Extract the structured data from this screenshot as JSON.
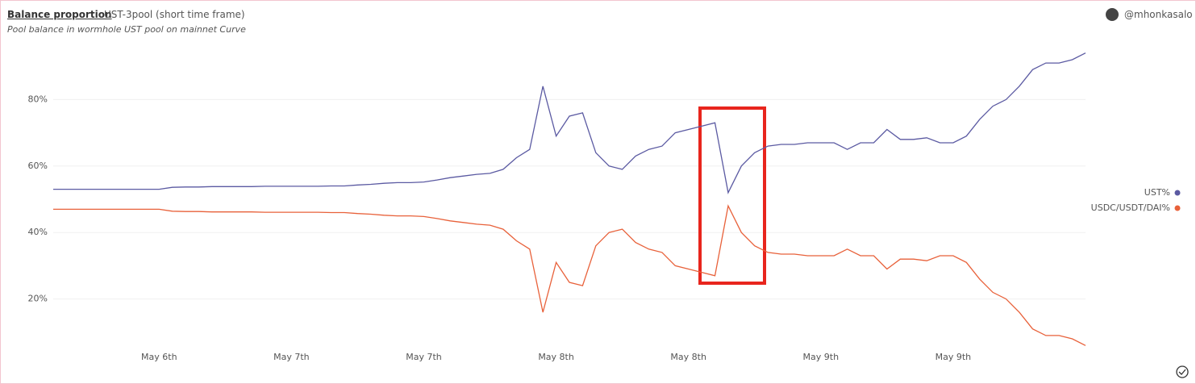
{
  "header": {
    "title": "Balance proportion",
    "query": "UST-3pool (short time frame)",
    "subtitle": "Pool balance in wormhole UST pool on mainnet Curve",
    "author": "@mhonkasalo"
  },
  "chart_data": {
    "type": "line",
    "categories": [
      null,
      null,
      null,
      null,
      null,
      null,
      null,
      null,
      "May 6th",
      null,
      null,
      null,
      null,
      null,
      null,
      null,
      null,
      null,
      "May 7th",
      null,
      null,
      null,
      null,
      null,
      null,
      null,
      null,
      null,
      "May 7th",
      null,
      null,
      null,
      null,
      null,
      null,
      null,
      null,
      null,
      "May 8th",
      null,
      null,
      null,
      null,
      null,
      null,
      null,
      null,
      null,
      "May 8th",
      null,
      null,
      null,
      null,
      null,
      null,
      null,
      null,
      null,
      "May 9th",
      null,
      null,
      null,
      null,
      null,
      null,
      null,
      null,
      null,
      "May 9th",
      null,
      null,
      null,
      null,
      null,
      null,
      null,
      null,
      null,
      null
    ],
    "series": [
      {
        "name": "UST%",
        "color": "#5b5aa2",
        "values": [
          53,
          53,
          53,
          53,
          53,
          53,
          53,
          53,
          53,
          53.6,
          53.7,
          53.7,
          53.8,
          53.8,
          53.8,
          53.8,
          53.9,
          53.9,
          53.9,
          53.9,
          53.9,
          54,
          54,
          54.3,
          54.5,
          54.8,
          55,
          55,
          55.2,
          55.8,
          56.5,
          57,
          57.5,
          57.8,
          59,
          62.5,
          65,
          84,
          69,
          75,
          76,
          64,
          60,
          59,
          63,
          65,
          66,
          70,
          71,
          72,
          73,
          52,
          60,
          64,
          66,
          66.5,
          66.5,
          67,
          67,
          67,
          65,
          67,
          67,
          71,
          68,
          68,
          68.5,
          67,
          67,
          69,
          74,
          78,
          80,
          84,
          89,
          91,
          91,
          92,
          94
        ]
      },
      {
        "name": "USDC/USDT/DAI%",
        "color": "#e8613a",
        "values": [
          47,
          47,
          47,
          47,
          47,
          47,
          47,
          47,
          47,
          46.4,
          46.3,
          46.3,
          46.2,
          46.2,
          46.2,
          46.2,
          46.1,
          46.1,
          46.1,
          46.1,
          46.1,
          46,
          46,
          45.7,
          45.5,
          45.2,
          45,
          45,
          44.8,
          44.2,
          43.5,
          43,
          42.5,
          42.2,
          41,
          37.5,
          35,
          16,
          31,
          25,
          24,
          36,
          40,
          41,
          37,
          35,
          34,
          30,
          29,
          28,
          27,
          48,
          40,
          36,
          34,
          33.5,
          33.5,
          33,
          33,
          33,
          35,
          33,
          33,
          29,
          32,
          32,
          31.5,
          33,
          33,
          31,
          26,
          22,
          20,
          16,
          11,
          9,
          9,
          8,
          6
        ]
      }
    ],
    "ylim": [
      0,
      100
    ],
    "yticks": [
      {
        "value": 20,
        "label": "20%"
      },
      {
        "value": 40,
        "label": "40%"
      },
      {
        "value": 60,
        "label": "60%"
      },
      {
        "value": 80,
        "label": "80%"
      }
    ],
    "grid": true,
    "legend": "right"
  }
}
